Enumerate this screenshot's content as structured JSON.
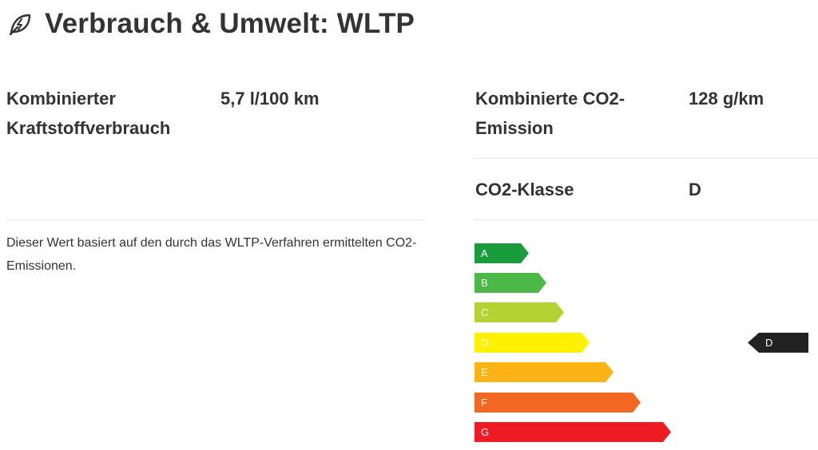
{
  "header": {
    "icon": "leaf-icon",
    "title": "Verbrauch & Umwelt: WLTP"
  },
  "left": {
    "fuel_label_line1": "Kombinierter",
    "fuel_label_line2": "Kraftstoffverbrauch",
    "fuel_value": "5,7 l/100 km",
    "note": "Dieser Wert basiert auf den durch das WLTP-Verfahren ermittelten CO2-Emissionen."
  },
  "right": {
    "co2_label_line1": "Kombinierte CO2-",
    "co2_label_line2": "Emission",
    "co2_value": "128 g/km",
    "class_label": "CO2-Klasse",
    "class_value": "D"
  },
  "energy_label": {
    "classes": [
      {
        "letter": "A",
        "color": "#1a9c3c"
      },
      {
        "letter": "B",
        "color": "#4cb848"
      },
      {
        "letter": "C",
        "color": "#b4d333"
      },
      {
        "letter": "D",
        "color": "#fff100"
      },
      {
        "letter": "E",
        "color": "#fcb316"
      },
      {
        "letter": "F",
        "color": "#f26722"
      },
      {
        "letter": "G",
        "color": "#ed1c24"
      }
    ],
    "selected": "D",
    "indicator_color": "#222222"
  }
}
